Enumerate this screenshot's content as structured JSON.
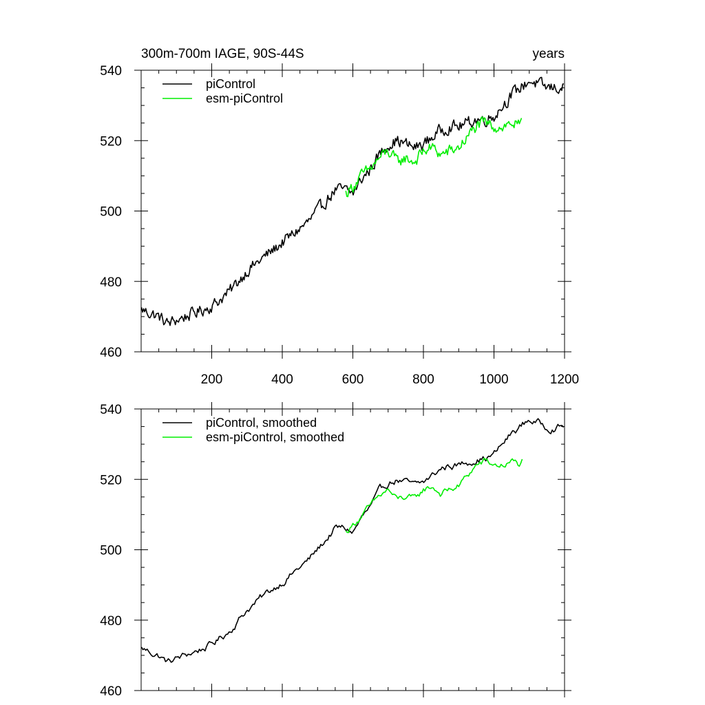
{
  "chart_data": [
    {
      "type": "line",
      "title": "300m-700m IAGE, 90S-44S",
      "right_title": "years",
      "xlim": [
        0,
        1200
      ],
      "ylim": [
        460,
        540
      ],
      "x_ticks": [
        200,
        400,
        600,
        800,
        1000,
        1200
      ],
      "y_ticks": [
        460,
        480,
        500,
        520,
        540
      ],
      "legend_position": "top-left",
      "series": [
        {
          "name": "piControl",
          "color": "#000000",
          "x": [
            1,
            25,
            50,
            75,
            100,
            125,
            150,
            175,
            200,
            225,
            250,
            275,
            300,
            325,
            350,
            375,
            400,
            425,
            450,
            475,
            500,
            525,
            550,
            575,
            600,
            625,
            650,
            675,
            700,
            725,
            750,
            775,
            800,
            825,
            850,
            875,
            900,
            925,
            950,
            975,
            1000,
            1025,
            1050,
            1075,
            1100,
            1125,
            1150,
            1175,
            1200
          ],
          "y": [
            472,
            471,
            470,
            468,
            469,
            470,
            471,
            472,
            473,
            475,
            477,
            480,
            483,
            485,
            487,
            489,
            491,
            493,
            495,
            497,
            500,
            503,
            506,
            506,
            505,
            509,
            512,
            516,
            519,
            520,
            519,
            518,
            519,
            521,
            523,
            524,
            524,
            525,
            526,
            526,
            527,
            530,
            533,
            535,
            537,
            536,
            535,
            535,
            535
          ]
        },
        {
          "name": "esm-piControl",
          "color": "#00ee00",
          "x": [
            580,
            600,
            625,
            650,
            675,
            700,
            725,
            750,
            775,
            800,
            825,
            850,
            875,
            900,
            925,
            950,
            975,
            1000,
            1025,
            1050,
            1075,
            1080
          ],
          "y": [
            505,
            507,
            510,
            512,
            515,
            517,
            514,
            515,
            514,
            517,
            518,
            516,
            517,
            518,
            521,
            524,
            525,
            524,
            524,
            525,
            524,
            525
          ]
        }
      ]
    },
    {
      "type": "line",
      "title": "",
      "xlim": [
        0,
        1200
      ],
      "ylim": [
        460,
        540
      ],
      "y_ticks": [
        460,
        480,
        500,
        520,
        540
      ],
      "legend_position": "top-left",
      "series": [
        {
          "name": "piControl, smoothed",
          "color": "#000000",
          "x": [
            1,
            25,
            50,
            75,
            100,
            125,
            150,
            175,
            200,
            225,
            250,
            275,
            300,
            325,
            350,
            375,
            400,
            425,
            450,
            475,
            500,
            525,
            550,
            575,
            600,
            625,
            650,
            675,
            700,
            725,
            750,
            775,
            800,
            825,
            850,
            875,
            900,
            925,
            950,
            975,
            1000,
            1025,
            1050,
            1075,
            1100,
            1125,
            1150,
            1175,
            1200
          ],
          "y": [
            472,
            471,
            470,
            468,
            469,
            470,
            471,
            472,
            473,
            475,
            477,
            480,
            483,
            485,
            487,
            489,
            491,
            493,
            495,
            497,
            500,
            503,
            506,
            506,
            505,
            509,
            512,
            516,
            519,
            520,
            519,
            518,
            519,
            521,
            523,
            524,
            524,
            525,
            526,
            526,
            527,
            530,
            533,
            535,
            537,
            536,
            535,
            535,
            535
          ]
        },
        {
          "name": "esm-piControl, smoothed",
          "color": "#00ee00",
          "x": [
            580,
            600,
            625,
            650,
            675,
            700,
            725,
            750,
            775,
            800,
            825,
            850,
            875,
            900,
            925,
            950,
            975,
            1000,
            1025,
            1050,
            1075,
            1080
          ],
          "y": [
            505,
            507,
            510,
            512,
            515,
            517,
            514,
            515,
            514,
            517,
            518,
            516,
            517,
            518,
            521,
            524,
            525,
            524,
            524,
            525,
            524,
            525
          ]
        }
      ]
    }
  ]
}
